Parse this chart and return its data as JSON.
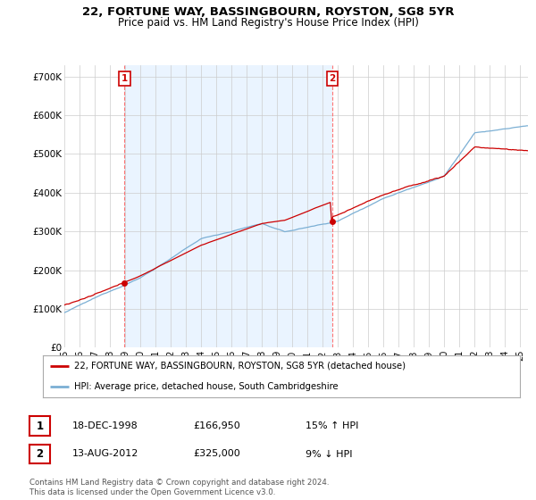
{
  "title": "22, FORTUNE WAY, BASSINGBOURN, ROYSTON, SG8 5YR",
  "subtitle": "Price paid vs. HM Land Registry's House Price Index (HPI)",
  "ylabel_ticks": [
    "£0",
    "£100K",
    "£200K",
    "£300K",
    "£400K",
    "£500K",
    "£600K",
    "£700K"
  ],
  "ytick_vals": [
    0,
    100000,
    200000,
    300000,
    400000,
    500000,
    600000,
    700000
  ],
  "ylim": [
    0,
    730000
  ],
  "xlim_start": 1995.0,
  "xlim_end": 2025.5,
  "sale1_date": 1998.96,
  "sale1_price": 166950,
  "sale1_label": "1",
  "sale1_date_str": "18-DEC-1998",
  "sale1_price_str": "£166,950",
  "sale1_hpi_str": "15% ↑ HPI",
  "sale2_date": 2012.62,
  "sale2_price": 325000,
  "sale2_label": "2",
  "sale2_date_str": "13-AUG-2012",
  "sale2_price_str": "£325,000",
  "sale2_hpi_str": "9% ↓ HPI",
  "legend_line1": "22, FORTUNE WAY, BASSINGBOURN, ROYSTON, SG8 5YR (detached house)",
  "legend_line2": "HPI: Average price, detached house, South Cambridgeshire",
  "footer": "Contains HM Land Registry data © Crown copyright and database right 2024.\nThis data is licensed under the Open Government Licence v3.0.",
  "line_color_red": "#cc0000",
  "line_color_blue": "#7bafd4",
  "shade_color": "#ddeeff",
  "background_color": "#ffffff",
  "grid_color": "#cccccc",
  "title_fontsize": 9.5,
  "subtitle_fontsize": 8.5
}
